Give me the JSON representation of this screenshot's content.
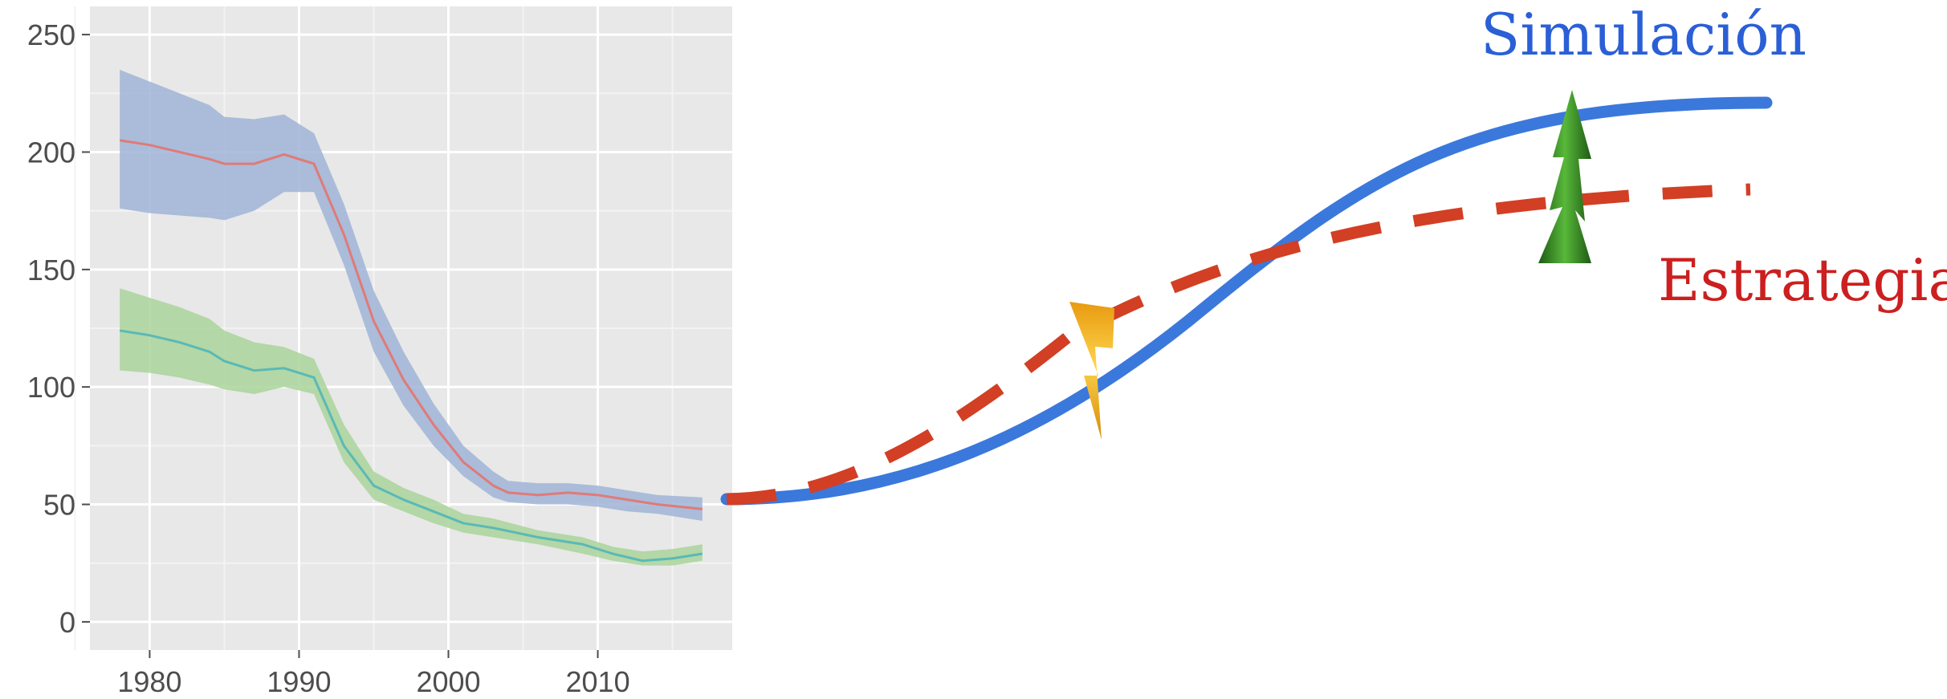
{
  "chart_data": [
    {
      "type": "line",
      "title": "",
      "xlabel": "",
      "ylabel": "",
      "xlim": [
        1976,
        2019
      ],
      "ylim": [
        -12,
        262
      ],
      "grid": true,
      "x_ticks": [
        1980,
        1990,
        2000,
        2010
      ],
      "y_ticks": [
        0,
        50,
        100,
        150,
        200,
        250
      ],
      "x_tick_labels": [
        "1980",
        "1990",
        "2000",
        "2010"
      ],
      "y_tick_labels": [
        "0",
        "50",
        "100",
        "150",
        "200",
        "250"
      ],
      "series": [
        {
          "color": "#e07a78",
          "band_color": "#9fb4d6",
          "x": [
            1978,
            1980,
            1982,
            1984,
            1985,
            1987,
            1989,
            1991,
            1993,
            1995,
            1997,
            1999,
            2001,
            2003,
            2004,
            2006,
            2008,
            2010,
            2012,
            2014,
            2017
          ],
          "y": [
            205,
            203,
            200,
            197,
            195,
            195,
            199,
            195,
            165,
            128,
            103,
            84,
            68,
            58,
            55,
            54,
            55,
            54,
            52,
            50,
            48
          ],
          "lower": [
            176,
            174,
            173,
            172,
            171,
            175,
            183,
            183,
            152,
            115,
            92,
            75,
            62,
            53,
            51,
            50,
            50,
            49,
            47,
            46,
            43
          ],
          "upper": [
            235,
            230,
            225,
            220,
            215,
            214,
            216,
            208,
            178,
            141,
            115,
            93,
            75,
            64,
            60,
            59,
            59,
            58,
            56,
            54,
            53
          ]
        },
        {
          "color": "#5ab9b6",
          "band_color": "#a9d49a",
          "x": [
            1978,
            1980,
            1982,
            1984,
            1985,
            1987,
            1989,
            1991,
            1993,
            1995,
            1997,
            1999,
            2001,
            2003,
            2006,
            2009,
            2011,
            2013,
            2015,
            2017
          ],
          "y": [
            124,
            122,
            119,
            115,
            111,
            107,
            108,
            104,
            75,
            58,
            52,
            47,
            42,
            40,
            36,
            33,
            29,
            26,
            27,
            29
          ],
          "lower": [
            107,
            106,
            104,
            101,
            99,
            97,
            100,
            97,
            68,
            52,
            47,
            42,
            38,
            36,
            33,
            29,
            26,
            24,
            24,
            26
          ],
          "upper": [
            142,
            138,
            134,
            129,
            124,
            119,
            117,
            112,
            84,
            64,
            57,
            52,
            46,
            44,
            39,
            36,
            32,
            30,
            31,
            33
          ]
        }
      ]
    },
    {
      "type": "line",
      "title": "",
      "series": [
        {
          "name": "Simulación",
          "color": "#3b78dc",
          "style": "solid"
        },
        {
          "name": "Estrategia",
          "color": "#d23f24",
          "style": "dashed"
        }
      ],
      "annotations": [
        {
          "name": "lightning-bolt",
          "color": "#f2b01e"
        },
        {
          "name": "green-arrow",
          "color": "#3d9a2c"
        }
      ]
    }
  ]
}
